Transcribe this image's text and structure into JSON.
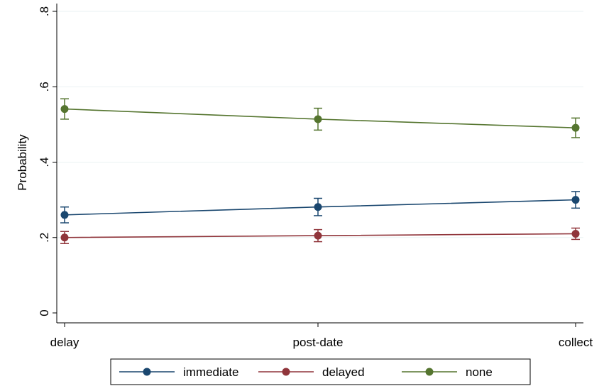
{
  "chart_data": {
    "type": "line",
    "title": "",
    "xlabel": "",
    "ylabel": "Probability",
    "categories": [
      "delay",
      "post-date",
      "collect"
    ],
    "ylim": [
      0,
      0.8
    ],
    "yticks": [
      0,
      0.2,
      0.4,
      0.6,
      0.8
    ],
    "ytick_labels": [
      "0",
      ".2",
      ".4",
      ".6",
      ".8"
    ],
    "grid": true,
    "legend_position": "bottom",
    "series": [
      {
        "name": "immediate",
        "color": "#1a476f",
        "values": [
          0.26,
          0.281,
          0.3
        ],
        "ci_low": [
          0.239,
          0.258,
          0.278
        ],
        "ci_high": [
          0.281,
          0.304,
          0.322
        ]
      },
      {
        "name": "delayed",
        "color": "#90353b",
        "values": [
          0.2,
          0.205,
          0.21
        ],
        "ci_low": [
          0.184,
          0.189,
          0.195
        ],
        "ci_high": [
          0.216,
          0.221,
          0.225
        ]
      },
      {
        "name": "none",
        "color": "#55752f",
        "values": [
          0.541,
          0.514,
          0.491
        ],
        "ci_low": [
          0.514,
          0.485,
          0.465
        ],
        "ci_high": [
          0.568,
          0.543,
          0.517
        ]
      }
    ]
  }
}
